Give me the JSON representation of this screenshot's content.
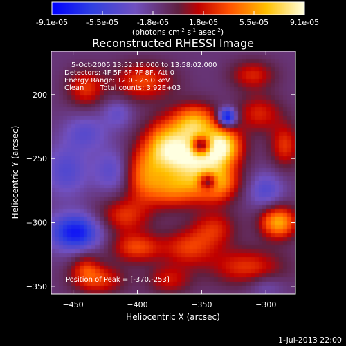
{
  "chart_data": {
    "type": "heatmap",
    "title": "Reconstructed RHESSI Image",
    "xlabel": "Heliocentric X (arcsec)",
    "ylabel": "Heliocentric Y (arcsec)",
    "xlim": [
      -467,
      -277
    ],
    "ylim": [
      -356,
      -166
    ],
    "xticks": [
      -450,
      -400,
      -350,
      -300
    ],
    "yticks": [
      -350,
      -300,
      -250,
      -200
    ],
    "colorbar": {
      "ticks": [
        "-9.1e-05",
        "-5.5e-05",
        "-1.8e-05",
        "1.8e-05",
        "5.5e-05",
        "9.1e-05"
      ],
      "unit_label": "(photons cm",
      "unit_sup1": "-2",
      "unit_mid": " s",
      "unit_sup2": "-1",
      "unit_end": " asec",
      "unit_sup3": "-2",
      "unit_close": ")",
      "range": [
        -9.1e-05,
        9.1e-05
      ]
    },
    "annotations": {
      "time": "5-Oct-2005 13:52:16.000 to 13:58:02.000",
      "detectors": "Detectors: 4F 5F 6F 7F 8F, Att 0",
      "energy": "Energy Range: 12.0 - 25.0 keV",
      "clean": "Clean",
      "counts": "Total counts: 3.92E+03",
      "peak": "Position of Peak = [-370,-253]"
    },
    "peak": [
      -370,
      -253
    ],
    "blobs": [
      {
        "x": -355,
        "y": -250,
        "sx": 18,
        "sy": 14,
        "a": 1.0
      },
      {
        "x": -333,
        "y": -240,
        "sx": 10,
        "sy": 10,
        "a": 0.8
      },
      {
        "x": -355,
        "y": -222,
        "sx": 12,
        "sy": 10,
        "a": 0.75
      },
      {
        "x": -378,
        "y": -240,
        "sx": 12,
        "sy": 14,
        "a": 0.7
      },
      {
        "x": -338,
        "y": -270,
        "sx": 12,
        "sy": 10,
        "a": 0.65
      },
      {
        "x": -372,
        "y": -275,
        "sx": 16,
        "sy": 10,
        "a": 0.55
      },
      {
        "x": -395,
        "y": -262,
        "sx": 10,
        "sy": 14,
        "a": 0.5
      },
      {
        "x": -290,
        "y": -300,
        "sx": 10,
        "sy": 9,
        "a": 0.8
      },
      {
        "x": -410,
        "y": -295,
        "sx": 14,
        "sy": 10,
        "a": 0.45
      },
      {
        "x": -400,
        "y": -320,
        "sx": 14,
        "sy": 8,
        "a": 0.5
      },
      {
        "x": -430,
        "y": -345,
        "sx": 14,
        "sy": 8,
        "a": 0.45
      },
      {
        "x": -360,
        "y": -320,
        "sx": 14,
        "sy": 10,
        "a": 0.45
      },
      {
        "x": -340,
        "y": -305,
        "sx": 12,
        "sy": 10,
        "a": 0.4
      },
      {
        "x": -315,
        "y": -335,
        "sx": 20,
        "sy": 10,
        "a": 0.45
      },
      {
        "x": -285,
        "y": -240,
        "sx": 8,
        "sy": 12,
        "a": 0.45
      },
      {
        "x": -305,
        "y": -215,
        "sx": 12,
        "sy": 10,
        "a": 0.4
      },
      {
        "x": -310,
        "y": -185,
        "sx": 12,
        "sy": 8,
        "a": 0.4
      },
      {
        "x": -395,
        "y": -190,
        "sx": 16,
        "sy": 10,
        "a": 0.5
      },
      {
        "x": -440,
        "y": -195,
        "sx": 10,
        "sy": 10,
        "a": 0.45
      },
      {
        "x": -440,
        "y": -335,
        "sx": 8,
        "sy": 8,
        "a": 0.35
      },
      {
        "x": -375,
        "y": -345,
        "sx": 12,
        "sy": 8,
        "a": 0.35
      },
      {
        "x": -350,
        "y": -240,
        "sx": 5,
        "sy": 5,
        "a": -0.9
      },
      {
        "x": -330,
        "y": -218,
        "sx": 5,
        "sy": 5,
        "a": -0.9
      },
      {
        "x": -345,
        "y": -268,
        "sx": 5,
        "sy": 5,
        "a": -0.8
      },
      {
        "x": -448,
        "y": -308,
        "sx": 14,
        "sy": 10,
        "a": -0.75
      },
      {
        "x": -455,
        "y": -260,
        "sx": 12,
        "sy": 14,
        "a": -0.35
      },
      {
        "x": -420,
        "y": -260,
        "sx": 10,
        "sy": 12,
        "a": -0.3
      },
      {
        "x": -440,
        "y": -230,
        "sx": 12,
        "sy": 10,
        "a": -0.3
      },
      {
        "x": -300,
        "y": -275,
        "sx": 10,
        "sy": 10,
        "a": -0.35
      },
      {
        "x": -415,
        "y": -215,
        "sx": 8,
        "sy": 8,
        "a": -0.25
      },
      {
        "x": -300,
        "y": -350,
        "sx": 10,
        "sy": 6,
        "a": -0.2
      }
    ]
  },
  "footer": {
    "date": "1-Jul-2013 22:00"
  }
}
